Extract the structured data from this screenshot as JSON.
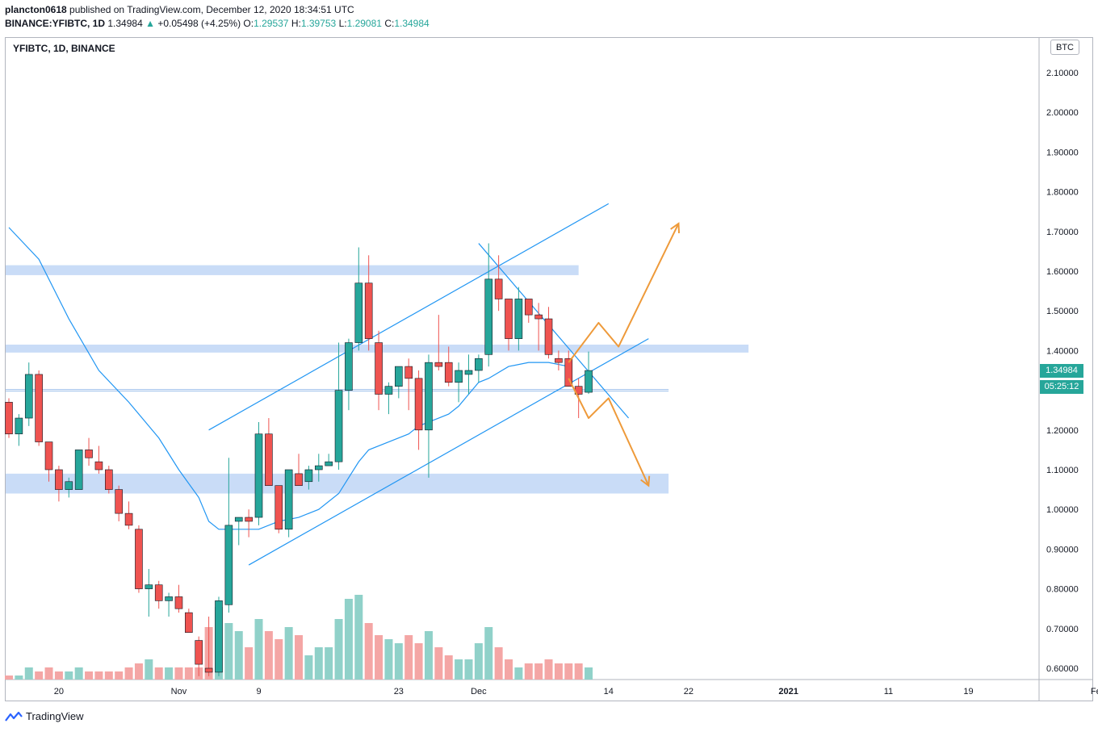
{
  "header": {
    "author": "plancton0618",
    "published_text": "published on TradingView.com, December 12, 2020 18:34:51 UTC",
    "symbol_full": "BINANCE:YFIBTC, 1D",
    "last": "1.34984",
    "change_arrow": "▲",
    "change": "+0.05498 (+4.25%)",
    "o_label": "O:",
    "o": "1.29537",
    "h_label": "H:",
    "h": "1.39753",
    "l_label": "L:",
    "l": "1.29081",
    "c_label": "C:",
    "c": "1.34984"
  },
  "chart_data": {
    "type": "candlestick",
    "symbol_label": "YFIBTC, 1D, BINANCE",
    "currency": "BTC",
    "last_price": "1.34984",
    "countdown": "05:25:12",
    "y_ticks": [
      "2.10000",
      "2.00000",
      "1.90000",
      "1.80000",
      "1.70000",
      "1.60000",
      "1.50000",
      "1.40000",
      "1.30000",
      "1.20000",
      "1.10000",
      "1.00000",
      "0.90000",
      "0.80000",
      "0.70000",
      "0.60000"
    ],
    "y_tick_values": [
      2.1,
      2.0,
      1.9,
      1.8,
      1.7,
      1.6,
      1.5,
      1.4,
      1.3,
      1.2,
      1.1,
      1.0,
      0.9,
      0.8,
      0.7,
      0.6
    ],
    "ylim": [
      0.57,
      2.15
    ],
    "x_ticks": [
      {
        "label": "20",
        "day": 5,
        "bold": false
      },
      {
        "label": "Nov",
        "day": 17,
        "bold": false
      },
      {
        "label": "9",
        "day": 25,
        "bold": false
      },
      {
        "label": "23",
        "day": 39,
        "bold": false
      },
      {
        "label": "Dec",
        "day": 47,
        "bold": false
      },
      {
        "label": "14",
        "day": 60,
        "bold": false
      },
      {
        "label": "22",
        "day": 68,
        "bold": false
      },
      {
        "label": "2021",
        "day": 78,
        "bold": true
      },
      {
        "label": "11",
        "day": 88,
        "bold": false
      },
      {
        "label": "19",
        "day": 96,
        "bold": false
      },
      {
        "label": "Feb",
        "day": 109,
        "bold": false
      }
    ],
    "candles": [
      [
        1.27,
        1.28,
        1.18,
        1.19,
        1
      ],
      [
        1.19,
        1.24,
        1.16,
        1.23,
        1
      ],
      [
        1.23,
        1.37,
        1.21,
        1.34,
        3
      ],
      [
        1.34,
        1.35,
        1.16,
        1.17,
        2
      ],
      [
        1.17,
        1.17,
        1.07,
        1.1,
        3
      ],
      [
        1.1,
        1.11,
        1.02,
        1.05,
        2
      ],
      [
        1.05,
        1.08,
        1.03,
        1.07,
        2
      ],
      [
        1.05,
        1.15,
        1.05,
        1.15,
        3
      ],
      [
        1.15,
        1.18,
        1.11,
        1.13,
        2
      ],
      [
        1.12,
        1.16,
        1.09,
        1.1,
        2
      ],
      [
        1.1,
        1.11,
        1.04,
        1.05,
        2
      ],
      [
        1.05,
        1.06,
        0.97,
        0.99,
        2
      ],
      [
        0.99,
        1.02,
        0.95,
        0.96,
        3
      ],
      [
        0.95,
        0.96,
        0.79,
        0.8,
        4
      ],
      [
        0.8,
        0.85,
        0.73,
        0.81,
        5
      ],
      [
        0.81,
        0.82,
        0.75,
        0.77,
        3
      ],
      [
        0.77,
        0.79,
        0.73,
        0.78,
        3
      ],
      [
        0.78,
        0.81,
        0.74,
        0.75,
        3
      ],
      [
        0.74,
        0.75,
        0.69,
        0.69,
        3
      ],
      [
        0.67,
        0.68,
        0.58,
        0.61,
        3
      ],
      [
        0.6,
        0.73,
        0.58,
        0.59,
        13
      ],
      [
        0.59,
        0.78,
        0.58,
        0.77,
        18
      ],
      [
        0.76,
        1.13,
        0.74,
        0.96,
        14
      ],
      [
        0.97,
        0.98,
        0.91,
        0.98,
        12
      ],
      [
        0.98,
        1.0,
        0.93,
        0.97,
        8
      ],
      [
        0.98,
        1.22,
        0.96,
        1.19,
        15
      ],
      [
        1.19,
        1.23,
        1.07,
        1.06,
        12
      ],
      [
        1.06,
        1.06,
        0.94,
        0.95,
        10
      ],
      [
        0.95,
        1.1,
        0.93,
        1.1,
        13
      ],
      [
        1.09,
        1.14,
        1.06,
        1.06,
        11
      ],
      [
        1.07,
        1.11,
        1.05,
        1.1,
        6
      ],
      [
        1.1,
        1.14,
        1.07,
        1.11,
        8
      ],
      [
        1.11,
        1.14,
        1.11,
        1.12,
        8
      ],
      [
        1.12,
        1.42,
        1.1,
        1.3,
        15
      ],
      [
        1.3,
        1.43,
        1.25,
        1.42,
        20
      ],
      [
        1.42,
        1.66,
        1.4,
        1.57,
        21
      ],
      [
        1.57,
        1.64,
        1.4,
        1.43,
        14
      ],
      [
        1.42,
        1.45,
        1.25,
        1.29,
        11
      ],
      [
        1.29,
        1.32,
        1.24,
        1.31,
        10
      ],
      [
        1.31,
        1.35,
        1.28,
        1.36,
        9
      ],
      [
        1.36,
        1.38,
        1.25,
        1.33,
        11
      ],
      [
        1.33,
        1.35,
        1.15,
        1.2,
        9
      ],
      [
        1.2,
        1.39,
        1.08,
        1.37,
        12
      ],
      [
        1.37,
        1.49,
        1.35,
        1.36,
        8
      ],
      [
        1.37,
        1.41,
        1.31,
        1.32,
        6
      ],
      [
        1.32,
        1.37,
        1.27,
        1.35,
        5
      ],
      [
        1.34,
        1.39,
        1.29,
        1.35,
        5
      ],
      [
        1.35,
        1.39,
        1.32,
        1.38,
        9
      ],
      [
        1.39,
        1.67,
        1.36,
        1.58,
        13
      ],
      [
        1.58,
        1.64,
        1.5,
        1.53,
        8
      ],
      [
        1.53,
        1.53,
        1.4,
        1.43,
        5
      ],
      [
        1.43,
        1.56,
        1.4,
        1.53,
        3
      ],
      [
        1.53,
        1.53,
        1.47,
        1.49,
        4
      ],
      [
        1.49,
        1.52,
        1.4,
        1.48,
        4
      ],
      [
        1.48,
        1.51,
        1.38,
        1.39,
        5
      ],
      [
        1.38,
        1.4,
        1.35,
        1.37,
        4
      ],
      [
        1.38,
        1.4,
        1.31,
        1.31,
        4
      ],
      [
        1.31,
        1.33,
        1.23,
        1.29,
        4
      ],
      [
        1.295,
        1.3975,
        1.2908,
        1.3498,
        3
      ]
    ],
    "candle_format": [
      "open",
      "high",
      "low",
      "close",
      "volume"
    ],
    "volume_scale_max": 24,
    "ma_line": [
      [
        0,
        1.71
      ],
      [
        3,
        1.63
      ],
      [
        6,
        1.48
      ],
      [
        9,
        1.35
      ],
      [
        12,
        1.27
      ],
      [
        15,
        1.18
      ],
      [
        17,
        1.1
      ],
      [
        19,
        1.03
      ],
      [
        20,
        0.97
      ],
      [
        21,
        0.95
      ],
      [
        23,
        0.95
      ],
      [
        25,
        0.95
      ],
      [
        27,
        0.97
      ],
      [
        29,
        0.98
      ],
      [
        31,
        1.0
      ],
      [
        33,
        1.04
      ],
      [
        34,
        1.08
      ],
      [
        35,
        1.12
      ],
      [
        36,
        1.15
      ],
      [
        38,
        1.17
      ],
      [
        40,
        1.19
      ],
      [
        41,
        1.21
      ],
      [
        42,
        1.22
      ],
      [
        43,
        1.23
      ],
      [
        44,
        1.24
      ],
      [
        45,
        1.26
      ],
      [
        46,
        1.29
      ],
      [
        47,
        1.32
      ],
      [
        48,
        1.33
      ],
      [
        50,
        1.36
      ],
      [
        52,
        1.37
      ],
      [
        54,
        1.37
      ],
      [
        56,
        1.36
      ]
    ],
    "channel_upper": [
      [
        20,
        1.2
      ],
      [
        60,
        1.77
      ]
    ],
    "channel_lower": [
      [
        24,
        0.86
      ],
      [
        64,
        1.43
      ]
    ],
    "downtrend": [
      [
        47,
        1.67
      ],
      [
        62,
        1.23
      ]
    ],
    "zones": [
      {
        "from": 0,
        "to": 57,
        "low": 1.59,
        "high": 1.615
      },
      {
        "from": 0,
        "to": 74,
        "low": 1.395,
        "high": 1.415
      },
      {
        "from": 0,
        "to": 66,
        "low": 1.04,
        "high": 1.09
      }
    ],
    "hline": {
      "from": 0,
      "to": 66,
      "value": 1.3
    },
    "projection_up": [
      [
        56,
        1.37
      ],
      [
        59,
        1.47
      ],
      [
        61,
        1.41
      ],
      [
        67,
        1.72
      ]
    ],
    "projection_down": [
      [
        56,
        1.33
      ],
      [
        58,
        1.23
      ],
      [
        60,
        1.28
      ],
      [
        64,
        1.06
      ]
    ],
    "colors": {
      "up": "#26a69a",
      "down": "#ef5350",
      "vol_up": "#90d1c9",
      "vol_down": "#f4a6a5",
      "ma": "#2196f3",
      "zone": "#bcd3f5",
      "projection": "#ee9a3a"
    }
  },
  "footer": {
    "brand": "TradingView"
  }
}
